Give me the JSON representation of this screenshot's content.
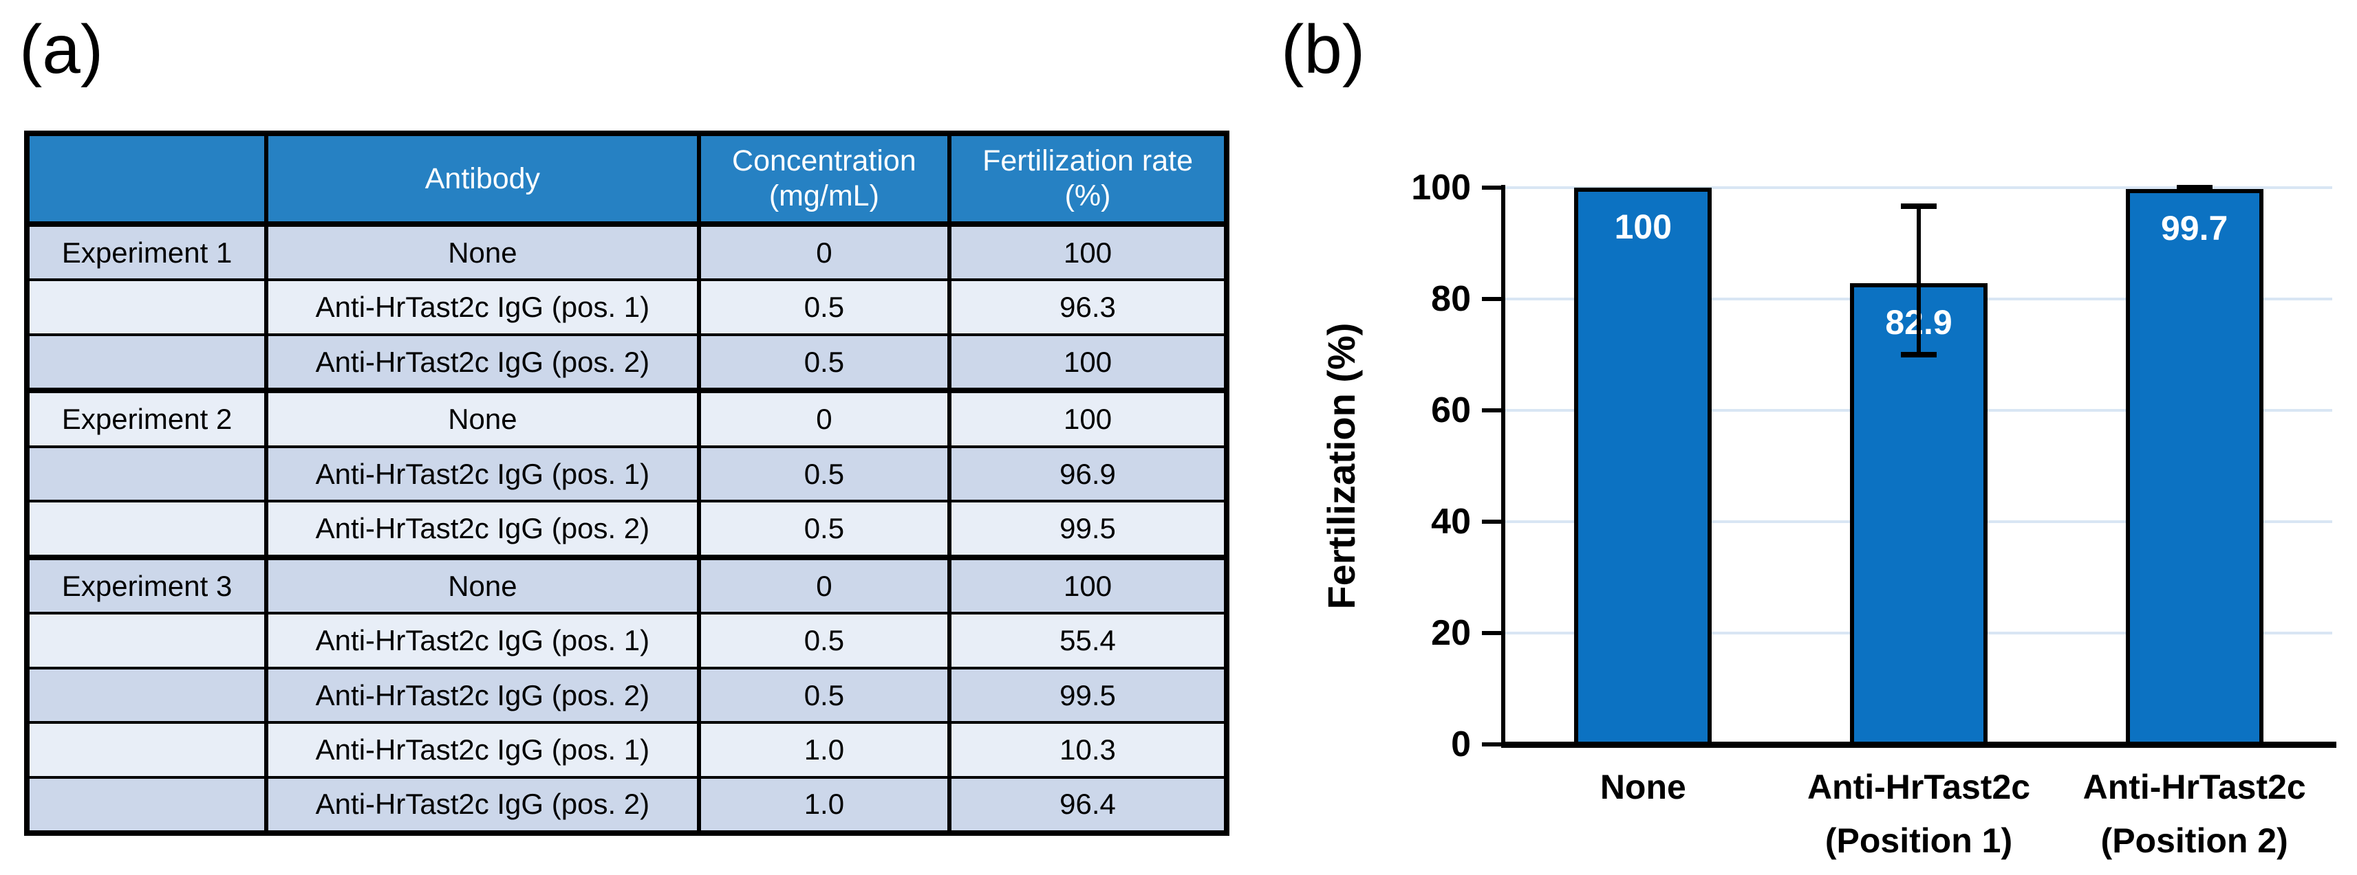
{
  "figure": {
    "panel_a_label": "(a)",
    "panel_b_label": "(b)"
  },
  "table": {
    "columns": [
      "",
      "Antibody",
      "Concentration\n(mg/mL)",
      "Fertilization rate\n(%)"
    ],
    "rows": [
      {
        "experiment": "Experiment 1",
        "antibody": "None",
        "concentration": "0",
        "fertilization_rate": "100"
      },
      {
        "experiment": "",
        "antibody": "Anti-HrTast2c IgG (pos. 1)",
        "concentration": "0.5",
        "fertilization_rate": "96.3"
      },
      {
        "experiment": "",
        "antibody": "Anti-HrTast2c IgG (pos. 2)",
        "concentration": "0.5",
        "fertilization_rate": "100"
      },
      {
        "experiment": "Experiment 2",
        "antibody": "None",
        "concentration": "0",
        "fertilization_rate": "100"
      },
      {
        "experiment": "",
        "antibody": "Anti-HrTast2c IgG (pos. 1)",
        "concentration": "0.5",
        "fertilization_rate": "96.9"
      },
      {
        "experiment": "",
        "antibody": "Anti-HrTast2c IgG (pos. 2)",
        "concentration": "0.5",
        "fertilization_rate": "99.5"
      },
      {
        "experiment": "Experiment 3",
        "antibody": "None",
        "concentration": "0",
        "fertilization_rate": "100"
      },
      {
        "experiment": "",
        "antibody": "Anti-HrTast2c IgG (pos. 1)",
        "concentration": "0.5",
        "fertilization_rate": "55.4"
      },
      {
        "experiment": "",
        "antibody": "Anti-HrTast2c IgG (pos. 2)",
        "concentration": "0.5",
        "fertilization_rate": "99.5"
      },
      {
        "experiment": "",
        "antibody": "Anti-HrTast2c IgG (pos. 1)",
        "concentration": "1.0",
        "fertilization_rate": "10.3"
      },
      {
        "experiment": "",
        "antibody": "Anti-HrTast2c IgG (pos. 2)",
        "concentration": "1.0",
        "fertilization_rate": "96.4"
      }
    ],
    "colors": {
      "header_bg": "#2681c3",
      "header_text": "#ffffff",
      "row_dark": "#ccd7ea",
      "row_light": "#e8eef7",
      "border": "#000000"
    }
  },
  "chart_data": {
    "type": "bar",
    "title": "",
    "categories": [
      "None",
      "Anti-HrTast2c\n(Position 1)",
      "Anti-HrTast2c\n(Position 2)"
    ],
    "values": [
      100,
      82.9,
      99.7
    ],
    "bar_labels": [
      "100",
      "82.9",
      "99.7"
    ],
    "error_up": [
      0,
      13.9,
      0.4
    ],
    "error_down": [
      0,
      13.0,
      0
    ],
    "xlabel": "",
    "ylabel": "Fertilization (%)",
    "yticks": [
      0,
      20,
      40,
      60,
      80,
      100
    ],
    "ylim": [
      0,
      100
    ],
    "grid": true,
    "legend_position": "none",
    "bar_color": "#0c72c2",
    "bar_border_color": "#000000",
    "gridline_color": "#d9e6f4",
    "value_label_color": "#ffffff"
  }
}
